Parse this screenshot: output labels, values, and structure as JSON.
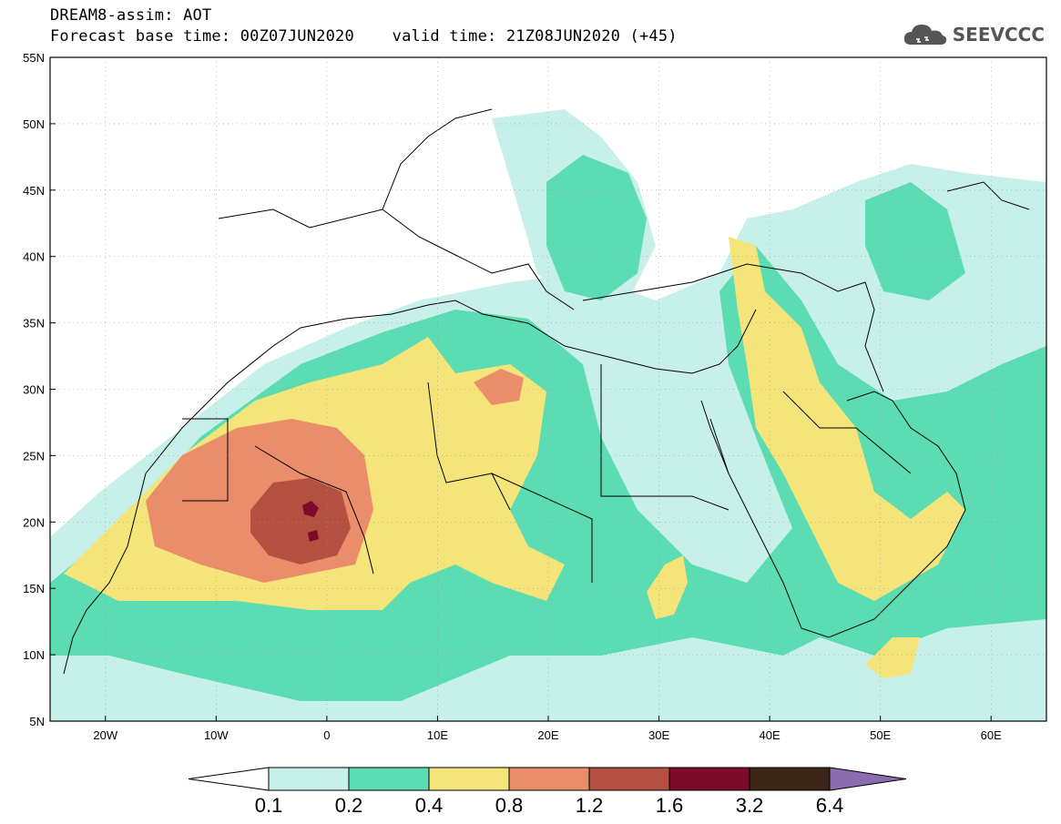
{
  "header": {
    "line1": "DREAM8-assim: AOT",
    "line2": "Forecast base time: 00Z07JUN2020    valid time: 21Z08JUN2020 (+45)",
    "logo_text": "SEEVCCC",
    "logo_icon": "cloud-icon"
  },
  "map": {
    "lon_range": [
      -25,
      65
    ],
    "lat_range": [
      5,
      55
    ],
    "lat_ticks": [
      {
        "value": 55,
        "label": "55N"
      },
      {
        "value": 50,
        "label": "50N"
      },
      {
        "value": 45,
        "label": "45N"
      },
      {
        "value": 40,
        "label": "40N"
      },
      {
        "value": 35,
        "label": "35N"
      },
      {
        "value": 30,
        "label": "30N"
      },
      {
        "value": 25,
        "label": "25N"
      },
      {
        "value": 20,
        "label": "20N"
      },
      {
        "value": 15,
        "label": "15N"
      },
      {
        "value": 10,
        "label": "10N"
      },
      {
        "value": 5,
        "label": "5N"
      }
    ],
    "lon_ticks": [
      {
        "value": -20,
        "label": "20W"
      },
      {
        "value": -10,
        "label": "10W"
      },
      {
        "value": 0,
        "label": "0"
      },
      {
        "value": 10,
        "label": "10E"
      },
      {
        "value": 20,
        "label": "20E"
      },
      {
        "value": 30,
        "label": "30E"
      },
      {
        "value": 40,
        "label": "40E"
      },
      {
        "value": 50,
        "label": "50E"
      },
      {
        "value": 60,
        "label": "60E"
      }
    ],
    "grid": "dotted"
  },
  "legend": {
    "levels": [
      "0.1",
      "0.2",
      "0.4",
      "0.8",
      "1.2",
      "1.6",
      "3.2",
      "6.4"
    ],
    "colors": [
      "#ffffff",
      "#c8f0ea",
      "#5cdcb2",
      "#f5e47a",
      "#e98d6b",
      "#b4503f",
      "#7e0a2b",
      "#3b2517",
      "#8c6bb1"
    ]
  }
}
